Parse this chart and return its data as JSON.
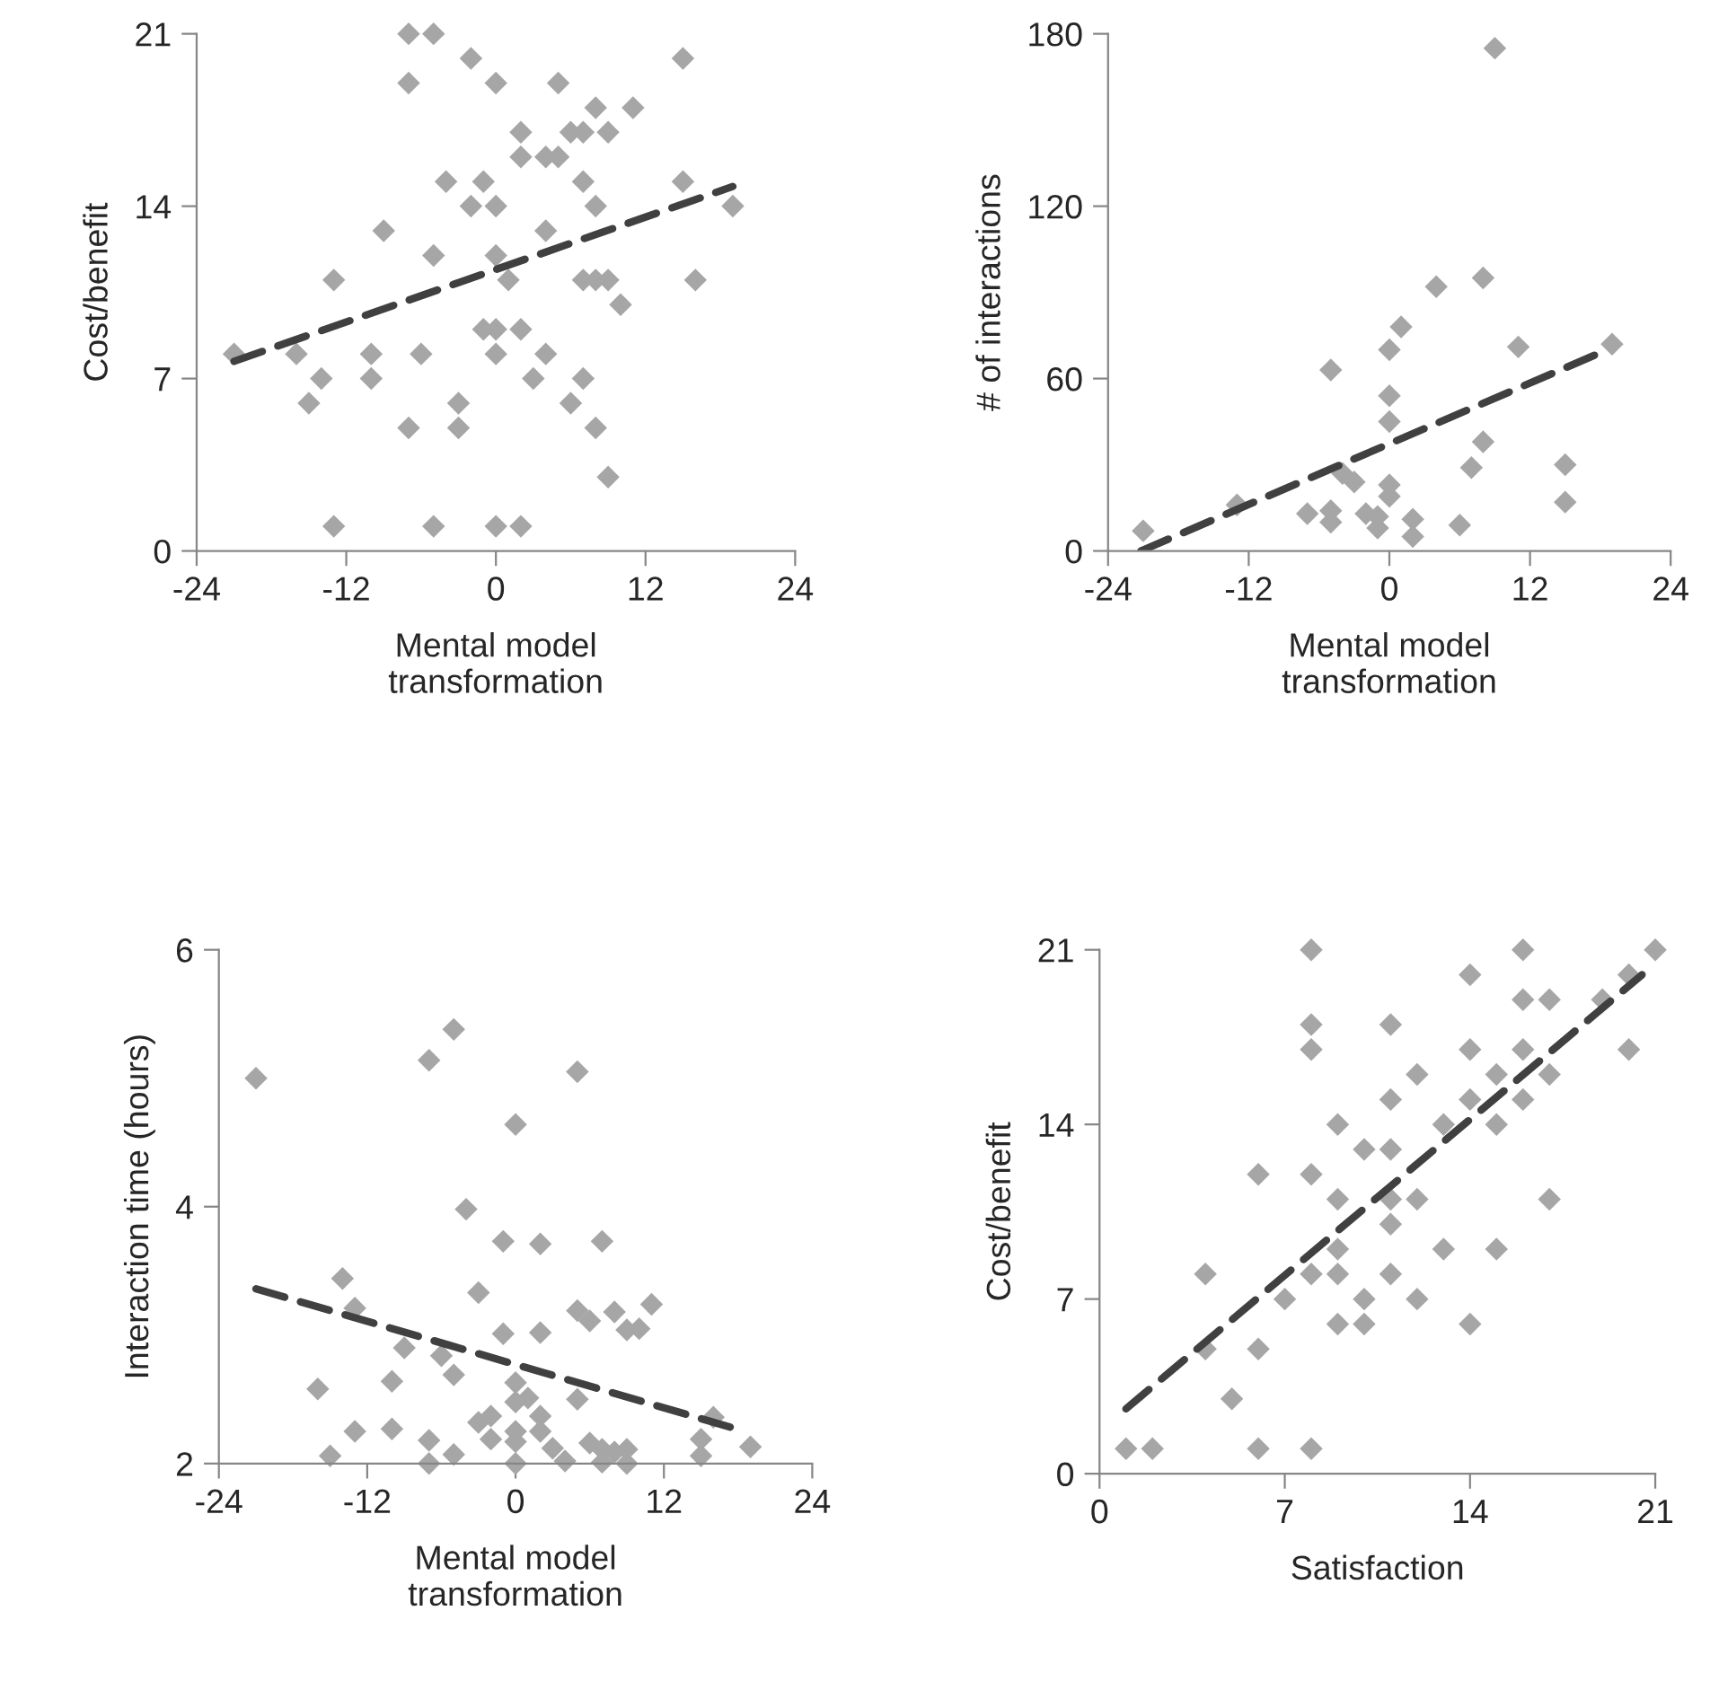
{
  "chart_data": [
    {
      "type": "scatter",
      "xlabel": "Mental model\ntransformation",
      "ylabel": "Cost/benefit",
      "xlim": [
        -24,
        24
      ],
      "xticks": [
        -24,
        -12,
        0,
        12,
        24
      ],
      "ylim": [
        0,
        21
      ],
      "yticks": [
        0,
        7,
        14,
        21
      ],
      "grid": false,
      "legend": false,
      "series": [
        {
          "type": "scatter",
          "marker": "diamond",
          "color": "#a6a6a6",
          "x": [
            -21,
            -7,
            -5,
            -2,
            -7,
            0,
            5,
            15,
            8,
            11,
            2,
            6,
            7,
            9,
            2,
            4,
            5,
            -4,
            -1,
            7,
            15,
            -2,
            0,
            8,
            19,
            -9,
            4,
            -5,
            0,
            -13,
            1,
            7,
            8,
            9,
            16,
            10,
            -1,
            0,
            2,
            -16,
            -10,
            -6,
            0,
            4,
            -14,
            -10,
            3,
            7,
            -15,
            -3,
            6,
            -7,
            -3,
            8,
            9,
            -13,
            -5,
            0,
            2
          ],
          "values": [
            8,
            21,
            21,
            20,
            19,
            19,
            19,
            20,
            18,
            18,
            17,
            17,
            17,
            17,
            16,
            16,
            16,
            15,
            15,
            15,
            15,
            14,
            14,
            14,
            14,
            13,
            13,
            12,
            12,
            11,
            11,
            11,
            11,
            11,
            11,
            10,
            9,
            9,
            9,
            8,
            8,
            8,
            8,
            8,
            7,
            7,
            7,
            7,
            6,
            6,
            6,
            5,
            5,
            5,
            3,
            1,
            1,
            1,
            1
          ]
        },
        {
          "type": "line",
          "marker": "none",
          "line_style": "dashed",
          "color": "#404040",
          "x": [
            -21,
            19
          ],
          "values": [
            7.7,
            14.8
          ]
        }
      ]
    },
    {
      "type": "scatter",
      "xlabel": "Mental model\ntransformation",
      "ylabel": "# of interactions",
      "xlim": [
        -24,
        24
      ],
      "xticks": [
        -24,
        -12,
        0,
        12,
        24
      ],
      "ylim": [
        0,
        180
      ],
      "yticks": [
        0,
        60,
        120,
        180
      ],
      "grid": false,
      "legend": false,
      "series": [
        {
          "type": "scatter",
          "marker": "diamond",
          "color": "#a6a6a6",
          "x": [
            -21,
            -13,
            -5,
            -7,
            -5,
            -5,
            -4,
            -3,
            -2,
            -1,
            -1,
            0,
            0,
            0,
            0,
            0,
            1,
            2,
            2,
            4,
            6,
            7,
            8,
            8,
            9,
            11,
            15,
            15,
            19
          ],
          "values": [
            7,
            16,
            63,
            13,
            14,
            10,
            27,
            24,
            13,
            12,
            8,
            70,
            54,
            45,
            23,
            19,
            78,
            11,
            5,
            92,
            9,
            29,
            95,
            38,
            175,
            71,
            30,
            17,
            72
          ]
        },
        {
          "type": "line",
          "marker": "none",
          "line_style": "dashed",
          "color": "#404040",
          "x": [
            -21.2,
            18
          ],
          "values": [
            0,
            69
          ]
        }
      ]
    },
    {
      "type": "scatter",
      "xlabel": "Mental model\ntransformation",
      "ylabel": "Interaction time (hours)",
      "xlim": [
        -24,
        24
      ],
      "xticks": [
        -24,
        -12,
        0,
        12,
        24
      ],
      "ylim": [
        2,
        6
      ],
      "yticks": [
        2,
        4,
        6
      ],
      "grid": false,
      "legend": false,
      "series": [
        {
          "type": "scatter",
          "marker": "diamond",
          "color": "#a6a6a6",
          "x": [
            -21,
            -7,
            -5,
            5,
            0,
            -4,
            -1,
            2,
            7,
            -14,
            -3,
            -13,
            5,
            6,
            8,
            11,
            9,
            10,
            -1,
            2,
            -9,
            -6,
            -5,
            -16,
            -10,
            0,
            0,
            1,
            5,
            -3,
            -2,
            2,
            -13,
            -10,
            -7,
            -2,
            0,
            0,
            2,
            3,
            6,
            7,
            8,
            9,
            4,
            7,
            9,
            16,
            15,
            15,
            19,
            -15,
            -7,
            -5,
            0
          ],
          "values": [
            5.0,
            5.14,
            5.38,
            5.05,
            4.64,
            3.98,
            3.73,
            3.71,
            3.73,
            3.44,
            3.33,
            3.21,
            3.19,
            3.11,
            3.18,
            3.24,
            3.04,
            3.05,
            3.01,
            3.02,
            2.9,
            2.84,
            2.69,
            2.58,
            2.64,
            2.63,
            2.48,
            2.51,
            2.5,
            2.32,
            2.37,
            2.37,
            2.25,
            2.27,
            2.18,
            2.19,
            2.25,
            2.17,
            2.25,
            2.12,
            2.16,
            2.11,
            2.09,
            2.11,
            2.02,
            2.01,
            2.0,
            2.36,
            2.19,
            2.06,
            2.13,
            2.06,
            2.0,
            2.07,
            2.0
          ]
        },
        {
          "type": "line",
          "marker": "none",
          "line_style": "dashed",
          "color": "#404040",
          "x": [
            -21,
            17.5
          ],
          "values": [
            3.36,
            2.28
          ]
        }
      ]
    },
    {
      "type": "scatter",
      "xlabel": "Satisfaction",
      "ylabel": "Cost/benefit",
      "xlim": [
        0,
        21
      ],
      "xticks": [
        0,
        7,
        14,
        21
      ],
      "ylim": [
        0,
        21
      ],
      "yticks": [
        0,
        7,
        14,
        21
      ],
      "grid": false,
      "legend": false,
      "series": [
        {
          "type": "scatter",
          "marker": "diamond",
          "color": "#a6a6a6",
          "x": [
            1,
            2,
            4,
            4,
            5,
            6,
            6,
            6,
            7,
            8,
            8,
            8,
            8,
            8,
            8,
            9,
            9,
            9,
            9,
            9,
            10,
            10,
            10,
            11,
            11,
            11,
            11,
            11,
            11,
            12,
            12,
            12,
            13,
            13,
            14,
            14,
            14,
            14,
            15,
            15,
            15,
            16,
            16,
            16,
            16,
            17,
            17,
            17,
            19,
            20,
            20,
            21
          ],
          "values": [
            1,
            1,
            8,
            5,
            3,
            1,
            5,
            12,
            7,
            21,
            18,
            17,
            12,
            8,
            1,
            14,
            11,
            9,
            8,
            6,
            13,
            7,
            6,
            18,
            15,
            13,
            11,
            10,
            8,
            16,
            11,
            7,
            14,
            9,
            20,
            17,
            15,
            6,
            16,
            14,
            9,
            21,
            19,
            17,
            15,
            19,
            16,
            11,
            19,
            20,
            17,
            21
          ]
        },
        {
          "type": "line",
          "marker": "none",
          "line_style": "dashed",
          "color": "#404040",
          "x": [
            1,
            20.5
          ],
          "values": [
            2.6,
            20
          ]
        }
      ]
    }
  ]
}
